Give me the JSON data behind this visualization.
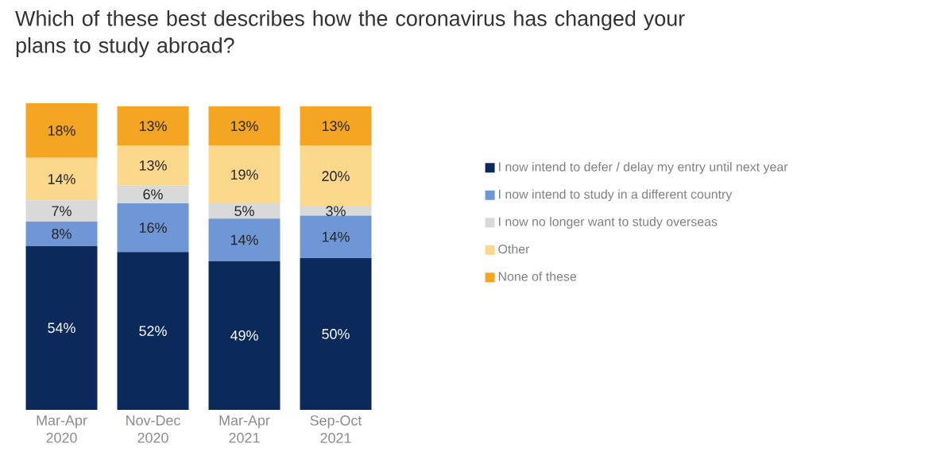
{
  "chart_data": {
    "type": "bar",
    "stacked": true,
    "title": "Which of these best describes how the coronavirus has changed your plans to study abroad?",
    "categories": [
      "Mar-Apr 2020",
      "Nov-Dec 2020",
      "Mar-Apr 2021",
      "Sep-Oct 2021"
    ],
    "legend": "right",
    "series": [
      {
        "name": "I now intend to defer / delay my entry until next year",
        "color": "#0b2a5b",
        "values": [
          54,
          52,
          49,
          50
        ],
        "value_labels": [
          "54%",
          "52%",
          "49%",
          "50%"
        ]
      },
      {
        "name": "I now intend to study in a different country",
        "color": "#6f97d6",
        "values": [
          8,
          16,
          14,
          14
        ],
        "value_labels": [
          "8%",
          "16%",
          "14%",
          "14%"
        ]
      },
      {
        "name": "I now no longer want to study overseas",
        "color": "#d9d9d9",
        "values": [
          7,
          6,
          5,
          3
        ],
        "value_labels": [
          "7%",
          "6%",
          "5%",
          "3%"
        ]
      },
      {
        "name": "Other",
        "color": "#fbd88c",
        "values": [
          14,
          13,
          19,
          20
        ],
        "value_labels": [
          "14%",
          "13%",
          "19%",
          "20%"
        ]
      },
      {
        "name": "None of these",
        "color": "#f4a521",
        "values": [
          18,
          13,
          13,
          13
        ],
        "value_labels": [
          "18%",
          "13%",
          "13%",
          "13%"
        ]
      }
    ]
  }
}
